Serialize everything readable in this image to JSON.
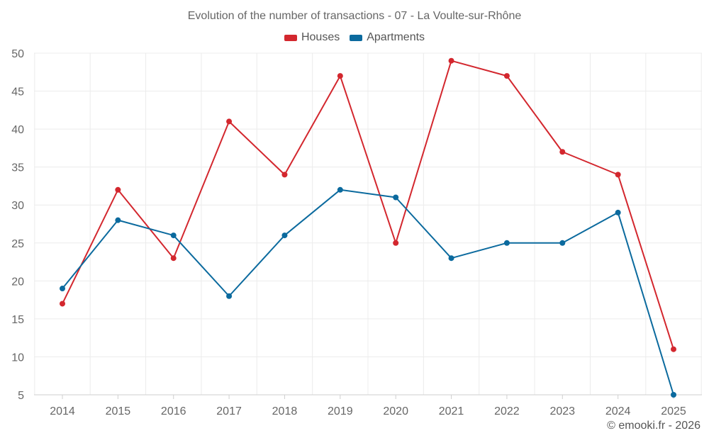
{
  "chart_data": {
    "type": "line",
    "title": "Evolution of the number of transactions - 07 - La Voulte-sur-Rhône",
    "xlabel": "",
    "ylabel": "",
    "categories": [
      "2014",
      "2015",
      "2016",
      "2017",
      "2018",
      "2019",
      "2020",
      "2021",
      "2022",
      "2023",
      "2024",
      "2025"
    ],
    "ylim": [
      5,
      50
    ],
    "yticks": [
      5,
      10,
      15,
      20,
      25,
      30,
      35,
      40,
      45,
      50
    ],
    "grid": true,
    "legend_position": "top-center",
    "series": [
      {
        "name": "Houses",
        "color": "#d3272e",
        "values": [
          17,
          32,
          23,
          41,
          34,
          47,
          25,
          49,
          47,
          37,
          34,
          11
        ]
      },
      {
        "name": "Apartments",
        "color": "#0b6a9e",
        "values": [
          19,
          28,
          26,
          18,
          26,
          32,
          31,
          23,
          25,
          25,
          29,
          5
        ]
      }
    ]
  },
  "credit": "© emooki.fr - 2026"
}
